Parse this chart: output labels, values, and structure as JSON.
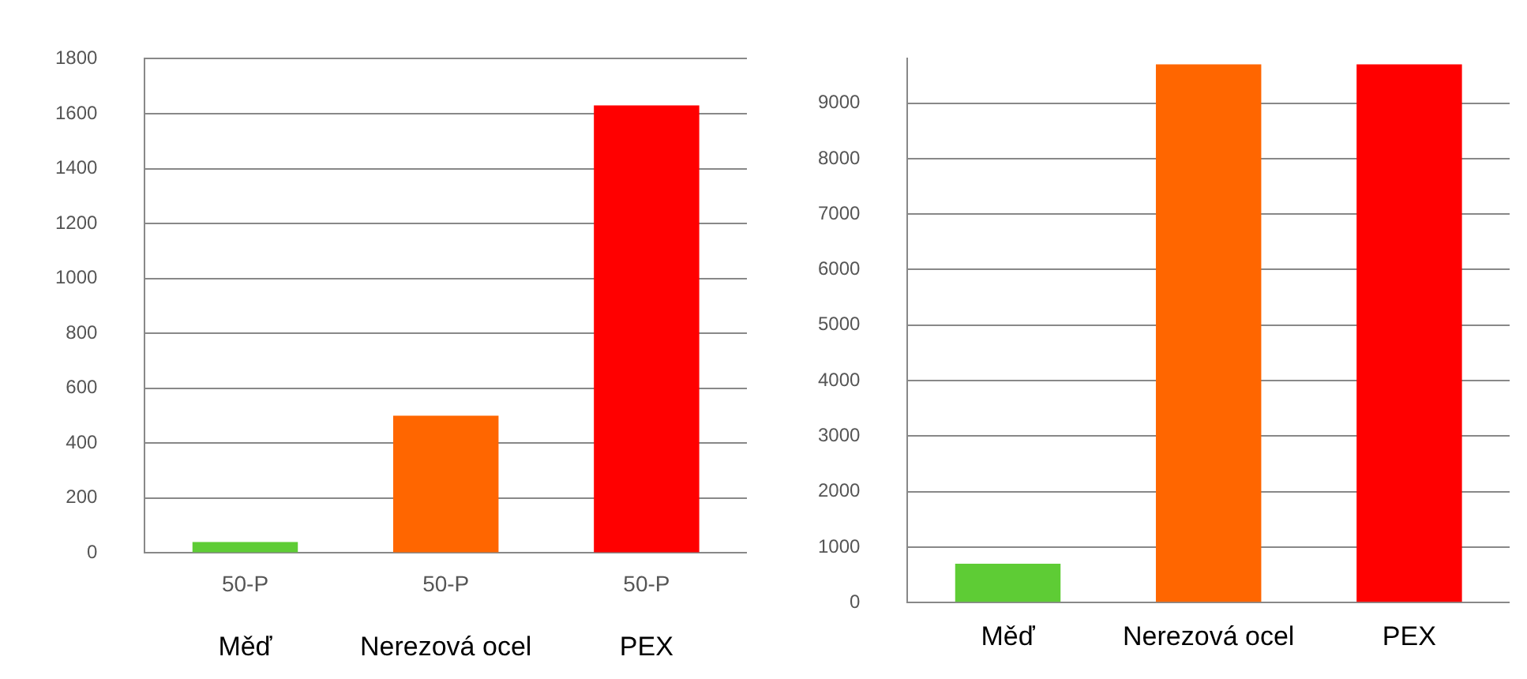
{
  "chart_data": [
    {
      "type": "bar",
      "categories": [
        "50-P",
        "50-P",
        "50-P"
      ],
      "values": [
        40,
        500,
        1630
      ],
      "colors": [
        "#5ecc35",
        "#ff6600",
        "#ff0000"
      ],
      "ylim": [
        0,
        1800
      ],
      "yticks": [
        0,
        200,
        400,
        600,
        800,
        1000,
        1200,
        1400,
        1600,
        1800
      ],
      "grid": "y",
      "annotations": [
        "Měď",
        "Nerezová ocel",
        "PEX"
      ]
    },
    {
      "type": "bar",
      "categories": [
        "Měď",
        "Nerezová ocel",
        "PEX"
      ],
      "values": [
        700,
        9700,
        9700
      ],
      "colors": [
        "#5ecc35",
        "#ff6600",
        "#ff0000"
      ],
      "ylim": [
        0,
        9800
      ],
      "yticks": [
        0,
        1000,
        2000,
        3000,
        4000,
        5000,
        6000,
        7000,
        8000,
        9000
      ],
      "grid": "y"
    }
  ]
}
